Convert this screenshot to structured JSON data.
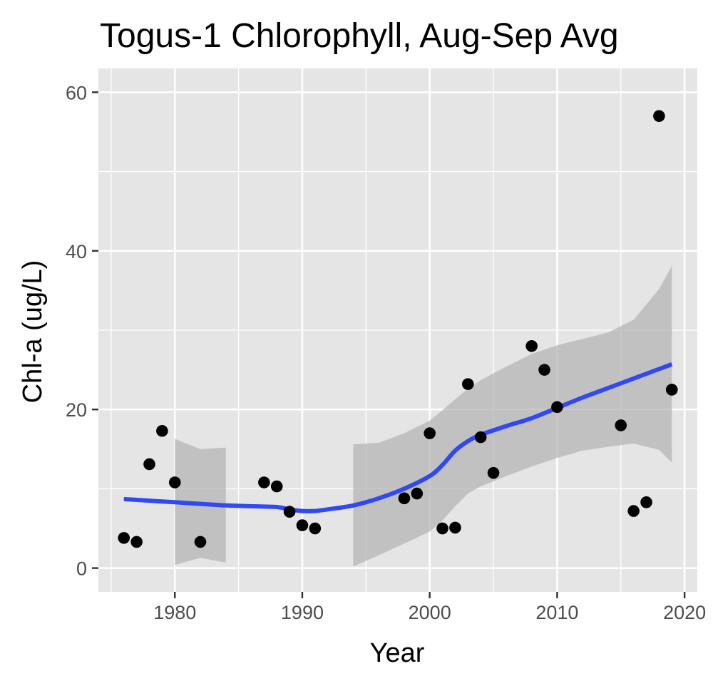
{
  "chart_data": {
    "type": "scatter",
    "title": "Togus-1 Chlorophyll, Aug-Sep Avg",
    "xlabel": "Year",
    "ylabel": "Chl-a (ug/L)",
    "xlim": [
      1974,
      2021
    ],
    "ylim": [
      -3,
      63
    ],
    "x_ticks": [
      1980,
      1990,
      2000,
      2010,
      2020
    ],
    "y_ticks": [
      0,
      20,
      40,
      60
    ],
    "grid": true,
    "colors": {
      "panel": "#e5e5e5",
      "grid": "#ffffff",
      "points": "#000000",
      "smooth_line": "#3049f5",
      "confidence_band": "#b3b3b3"
    },
    "points": [
      {
        "x": 1976,
        "y": 3.8
      },
      {
        "x": 1977,
        "y": 3.3
      },
      {
        "x": 1978,
        "y": 13.1
      },
      {
        "x": 1979,
        "y": 17.3
      },
      {
        "x": 1980,
        "y": 10.8
      },
      {
        "x": 1982,
        "y": 3.3
      },
      {
        "x": 1987,
        "y": 10.8
      },
      {
        "x": 1988,
        "y": 10.3
      },
      {
        "x": 1989,
        "y": 7.1
      },
      {
        "x": 1990,
        "y": 5.4
      },
      {
        "x": 1991,
        "y": 5.0
      },
      {
        "x": 1998,
        "y": 8.8
      },
      {
        "x": 1999,
        "y": 9.4
      },
      {
        "x": 2000,
        "y": 17.0
      },
      {
        "x": 2001,
        "y": 5.0
      },
      {
        "x": 2002,
        "y": 5.1
      },
      {
        "x": 2003,
        "y": 23.2
      },
      {
        "x": 2004,
        "y": 16.5
      },
      {
        "x": 2005,
        "y": 12.0
      },
      {
        "x": 2008,
        "y": 28.0
      },
      {
        "x": 2009,
        "y": 25.0
      },
      {
        "x": 2010,
        "y": 20.3
      },
      {
        "x": 2015,
        "y": 18.0
      },
      {
        "x": 2016,
        "y": 7.2
      },
      {
        "x": 2017,
        "y": 8.3
      },
      {
        "x": 2018,
        "y": 57.0
      },
      {
        "x": 2019,
        "y": 22.5
      }
    ],
    "smooth": {
      "x": [
        1976,
        1978,
        1980,
        1982,
        1984,
        1986,
        1988,
        1989,
        1990,
        1991,
        1992,
        1994,
        1996,
        1998,
        2000,
        2001,
        2002,
        2003,
        2004,
        2006,
        2008,
        2010,
        2012,
        2014,
        2016,
        2018,
        2019
      ],
      "y": [
        8.7,
        8.5,
        8.3,
        8.1,
        7.9,
        7.8,
        7.7,
        7.4,
        7.2,
        7.2,
        7.4,
        7.9,
        8.8,
        10.0,
        11.6,
        13.0,
        14.8,
        16.0,
        16.8,
        17.9,
        18.9,
        20.2,
        21.5,
        22.7,
        23.9,
        25.1,
        25.7
      ],
      "lower": [
        null,
        null,
        0.4,
        1.3,
        0.7,
        0.1,
        null,
        null,
        null,
        null,
        null,
        0.2,
        1.6,
        3.1,
        4.6,
        6.0,
        7.8,
        9.4,
        10.3,
        11.6,
        12.8,
        13.9,
        14.8,
        15.3,
        15.7,
        14.9,
        13.3
      ],
      "upper": [
        null,
        null,
        16.3,
        15.0,
        15.2,
        15.5,
        null,
        null,
        null,
        null,
        null,
        15.6,
        15.8,
        17.0,
        18.6,
        19.9,
        21.3,
        22.6,
        23.7,
        25.4,
        27.0,
        28.1,
        28.9,
        29.7,
        31.3,
        35.2,
        38.1
      ]
    },
    "confidence_segments": [
      [
        1979,
        1985
      ],
      [
        1994,
        2019
      ]
    ]
  }
}
